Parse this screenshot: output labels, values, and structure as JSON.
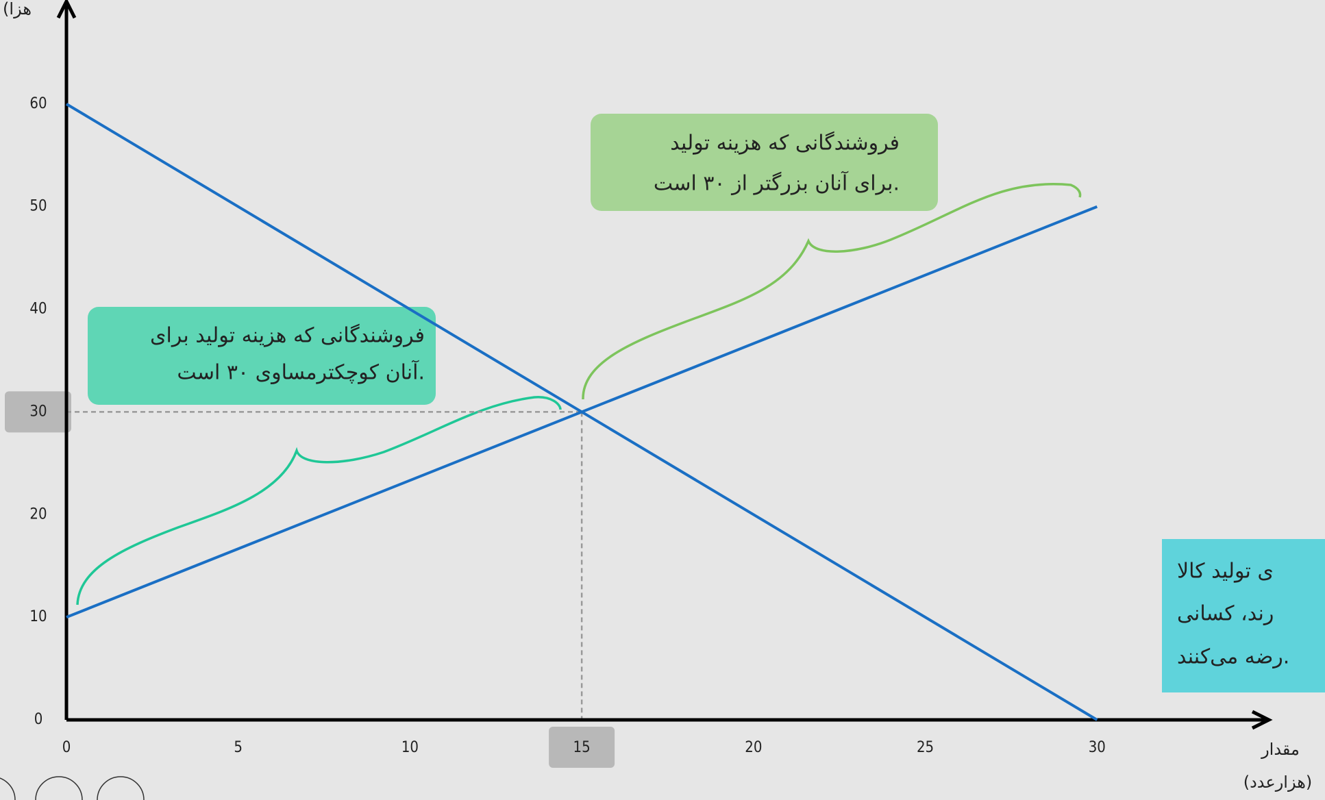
{
  "chart_data": {
    "type": "line",
    "x": [
      0,
      30
    ],
    "series": [
      {
        "color": "#1a6fc4",
        "values": [
          60,
          0
        ]
      },
      {
        "color": "#1a6fc4",
        "values": [
          10,
          50
        ]
      }
    ],
    "xlim": [
      0,
      35
    ],
    "ylim": [
      0,
      70
    ],
    "xticks": [
      0,
      5,
      10,
      15,
      20,
      25,
      30
    ],
    "yticks": [
      0,
      10,
      20,
      30,
      40,
      50,
      60
    ],
    "reference_point": [
      15,
      30
    ],
    "xlabel": [
      "مقدار",
      "(هزارعدد)"
    ],
    "ylabel": "(هزا",
    "annotations": [
      {
        "lines": [
          "فروشندگانی که هزینه تولید",
          "برای آنان بزرگتر از ۳۰ است."
        ]
      },
      {
        "lines": [
          "فروشندگانی که هزینه تولید برای",
          "آنان کوچکترمساوی ۳۰ است."
        ]
      },
      {
        "lines": [
          "ی تولید کالا",
          "رند، کسانی",
          "رضه می‌کنند."
        ]
      }
    ]
  }
}
